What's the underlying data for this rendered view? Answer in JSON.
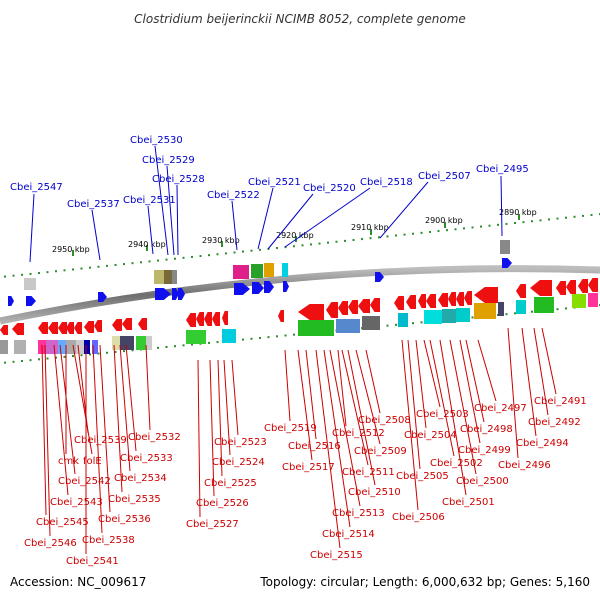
{
  "title": "Clostridium beijerinckii NCIMB 8052, complete genome",
  "accession": "Accession: NC_009617",
  "summary": "Topology: circular; Length: 6,000,632 bp; Genes: 5,160",
  "kbp_marks": [
    "2950 kbp",
    "2940 kbp",
    "2930 kbp",
    "2920 kbp",
    "2910 kbp",
    "2900 kbp",
    "2890 kbp"
  ],
  "forward_genes": [
    "Cbei_2547",
    "Cbei_2537",
    "Cbei_2531",
    "Cbei_2530",
    "Cbei_2529",
    "Cbei_2528",
    "Cbei_2522",
    "Cbei_2521",
    "Cbei_2520",
    "Cbei_2518",
    "Cbei_2507",
    "Cbei_2495"
  ],
  "reverse_genes": [
    "Cbei_2545",
    "Cbei_2546",
    "Cbei_2543",
    "Cbei_2542",
    "cmk",
    "folE",
    "Cbei_2539",
    "Cbei_2541",
    "Cbei_2538",
    "Cbei_2536",
    "Cbei_2535",
    "Cbei_2534",
    "Cbei_2533",
    "Cbei_2532",
    "Cbei_2527",
    "Cbei_2526",
    "Cbei_2525",
    "Cbei_2524",
    "Cbei_2523",
    "Cbei_2519",
    "Cbei_2517",
    "Cbei_2516",
    "Cbei_2515",
    "Cbei_2514",
    "Cbei_2513",
    "Cbei_2512",
    "Cbei_2511",
    "Cbei_2510",
    "Cbei_2509",
    "Cbei_2508",
    "Cbei_2506",
    "Cbei_2505",
    "Cbei_2504",
    "Cbei_2503",
    "Cbei_2502",
    "Cbei_2501",
    "Cbei_2500",
    "Cbei_2499",
    "Cbei_2498",
    "Cbei_2497",
    "Cbei_2496",
    "Cbei_2494",
    "Cbei_2492",
    "Cbei_2491"
  ]
}
